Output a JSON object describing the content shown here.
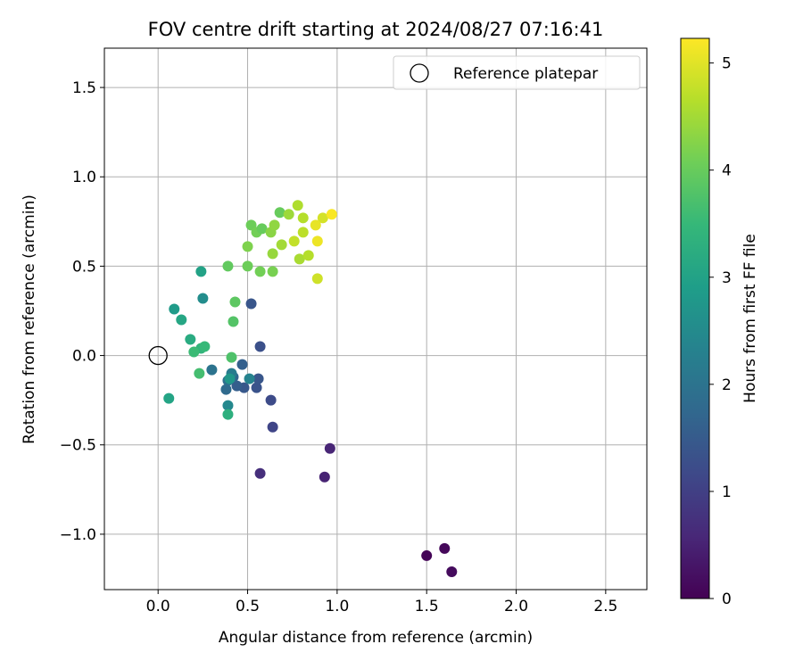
{
  "chart_data": {
    "type": "scatter",
    "title": "FOV centre drift starting at 2024/08/27 07:16:41",
    "xlabel": "Angular distance from reference (arcmin)",
    "ylabel": "Rotation from reference (arcmin)",
    "xlim": [
      -0.3,
      2.73
    ],
    "ylim": [
      -1.31,
      1.72
    ],
    "xticks": [
      0.0,
      0.5,
      1.0,
      1.5,
      2.0,
      2.5
    ],
    "xtick_labels": [
      "0.0",
      "0.5",
      "1.0",
      "1.5",
      "2.0",
      "2.5"
    ],
    "yticks": [
      -1.0,
      -0.5,
      0.0,
      0.5,
      1.0,
      1.5
    ],
    "ytick_labels": [
      "−1.0",
      "−0.5",
      "0.0",
      "0.5",
      "1.0",
      "1.5"
    ],
    "grid": true,
    "legend": {
      "position": "top-right",
      "entries": [
        {
          "label": "Reference platepar",
          "marker": "open-circle"
        }
      ]
    },
    "reference_point": {
      "x": 0.0,
      "y": 0.0
    },
    "colorbar": {
      "label": "Hours from first FF file",
      "colormap": "viridis",
      "range": [
        0,
        5.23
      ],
      "ticks": [
        0,
        1,
        2,
        3,
        4,
        5
      ],
      "tick_labels": [
        "0",
        "1",
        "2",
        "3",
        "4",
        "5"
      ]
    },
    "colormap_stops": [
      "#440154",
      "#482878",
      "#3e4989",
      "#31688e",
      "#26828e",
      "#1f9e89",
      "#35b779",
      "#6ece58",
      "#b5de2b",
      "#fde725"
    ],
    "points": [
      {
        "x": 1.5,
        "y": -1.12,
        "t": 0.05
      },
      {
        "x": 1.6,
        "y": -1.08,
        "t": 0.1
      },
      {
        "x": 1.64,
        "y": -1.21,
        "t": 0.15
      },
      {
        "x": 0.93,
        "y": -0.68,
        "t": 0.5
      },
      {
        "x": 0.96,
        "y": -0.52,
        "t": 0.55
      },
      {
        "x": 0.57,
        "y": -0.66,
        "t": 0.7
      },
      {
        "x": 0.64,
        "y": -0.4,
        "t": 1.1
      },
      {
        "x": 0.63,
        "y": -0.25,
        "t": 1.2
      },
      {
        "x": 0.57,
        "y": 0.05,
        "t": 1.3
      },
      {
        "x": 0.52,
        "y": 0.29,
        "t": 1.4
      },
      {
        "x": 0.55,
        "y": -0.18,
        "t": 1.35
      },
      {
        "x": 0.56,
        "y": -0.13,
        "t": 1.4
      },
      {
        "x": 0.48,
        "y": -0.18,
        "t": 1.45
      },
      {
        "x": 0.44,
        "y": -0.17,
        "t": 1.55
      },
      {
        "x": 0.47,
        "y": -0.05,
        "t": 1.6
      },
      {
        "x": 0.42,
        "y": -0.12,
        "t": 1.7
      },
      {
        "x": 0.38,
        "y": -0.19,
        "t": 1.8
      },
      {
        "x": 0.39,
        "y": -0.14,
        "t": 1.9
      },
      {
        "x": 0.3,
        "y": -0.08,
        "t": 2.0
      },
      {
        "x": 0.41,
        "y": -0.1,
        "t": 2.2
      },
      {
        "x": 0.51,
        "y": -0.13,
        "t": 2.35
      },
      {
        "x": 0.39,
        "y": -0.28,
        "t": 2.45
      },
      {
        "x": 0.25,
        "y": 0.32,
        "t": 2.55
      },
      {
        "x": 0.4,
        "y": -0.13,
        "t": 2.75
      },
      {
        "x": 0.09,
        "y": 0.26,
        "t": 2.85
      },
      {
        "x": 0.24,
        "y": 0.47,
        "t": 3.0
      },
      {
        "x": 0.06,
        "y": -0.24,
        "t": 3.05
      },
      {
        "x": 0.13,
        "y": 0.2,
        "t": 3.1
      },
      {
        "x": 0.18,
        "y": 0.09,
        "t": 3.2
      },
      {
        "x": 0.39,
        "y": -0.33,
        "t": 3.3
      },
      {
        "x": 0.24,
        "y": 0.04,
        "t": 3.4
      },
      {
        "x": 0.26,
        "y": 0.05,
        "t": 3.5
      },
      {
        "x": 0.2,
        "y": 0.02,
        "t": 3.55
      },
      {
        "x": 0.23,
        "y": -0.1,
        "t": 3.65
      },
      {
        "x": 0.41,
        "y": -0.01,
        "t": 3.75
      },
      {
        "x": 0.42,
        "y": 0.19,
        "t": 3.8
      },
      {
        "x": 0.43,
        "y": 0.3,
        "t": 3.9
      },
      {
        "x": 0.39,
        "y": 0.5,
        "t": 3.95
      },
      {
        "x": 0.5,
        "y": 0.5,
        "t": 4.05
      },
      {
        "x": 0.57,
        "y": 0.47,
        "t": 4.1
      },
      {
        "x": 0.64,
        "y": 0.47,
        "t": 4.15
      },
      {
        "x": 0.5,
        "y": 0.61,
        "t": 4.2
      },
      {
        "x": 0.52,
        "y": 0.73,
        "t": 4.05
      },
      {
        "x": 0.55,
        "y": 0.69,
        "t": 4.1
      },
      {
        "x": 0.58,
        "y": 0.71,
        "t": 4.0
      },
      {
        "x": 0.68,
        "y": 0.8,
        "t": 4.0
      },
      {
        "x": 0.63,
        "y": 0.69,
        "t": 4.3
      },
      {
        "x": 0.65,
        "y": 0.73,
        "t": 4.35
      },
      {
        "x": 0.73,
        "y": 0.79,
        "t": 4.45
      },
      {
        "x": 0.64,
        "y": 0.57,
        "t": 4.4
      },
      {
        "x": 0.69,
        "y": 0.62,
        "t": 4.5
      },
      {
        "x": 0.78,
        "y": 0.84,
        "t": 4.6
      },
      {
        "x": 0.81,
        "y": 0.77,
        "t": 4.65
      },
      {
        "x": 0.81,
        "y": 0.69,
        "t": 4.7
      },
      {
        "x": 0.76,
        "y": 0.64,
        "t": 4.75
      },
      {
        "x": 0.79,
        "y": 0.54,
        "t": 4.55
      },
      {
        "x": 0.84,
        "y": 0.56,
        "t": 4.65
      },
      {
        "x": 0.89,
        "y": 0.43,
        "t": 4.85
      },
      {
        "x": 0.92,
        "y": 0.77,
        "t": 4.9
      },
      {
        "x": 0.88,
        "y": 0.73,
        "t": 5.05
      },
      {
        "x": 0.89,
        "y": 0.64,
        "t": 5.1
      },
      {
        "x": 0.97,
        "y": 0.79,
        "t": 5.2
      }
    ]
  }
}
